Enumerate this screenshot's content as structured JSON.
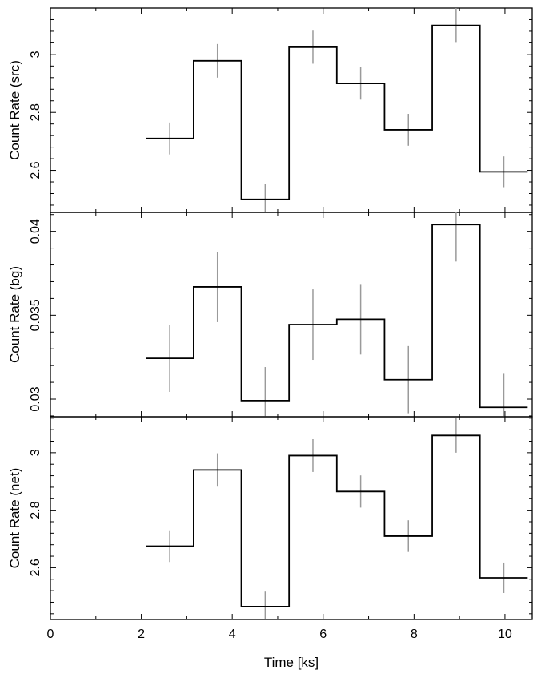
{
  "chart_data": [
    {
      "type": "line",
      "subtype": "step-histogram with error bars",
      "ylabel": "Count Rate (src)",
      "xlim": [
        0,
        10.6
      ],
      "ylim": [
        2.455,
        3.16
      ],
      "yticks": [
        2.6,
        2.8,
        3
      ],
      "ytick_labels": [
        "2.6",
        "2.8",
        "3"
      ],
      "bin_edges": [
        2.1,
        3.15,
        4.2,
        5.25,
        6.3,
        7.35,
        8.4,
        9.45,
        10.5
      ],
      "x": [
        2.625,
        3.675,
        4.725,
        5.775,
        6.825,
        7.875,
        8.925,
        9.975
      ],
      "values": [
        2.71,
        2.978,
        2.5,
        3.025,
        2.9,
        2.74,
        3.1,
        2.595
      ],
      "errors": [
        0.055,
        0.058,
        0.052,
        0.057,
        0.056,
        0.055,
        0.06,
        0.053
      ]
    },
    {
      "type": "line",
      "subtype": "step-histogram with error bars",
      "ylabel": "Count Rate (bg)",
      "xlim": [
        0,
        10.6
      ],
      "ylim": [
        0.02895,
        0.04113
      ],
      "yticks": [
        0.03,
        0.035,
        0.04
      ],
      "ytick_labels": [
        "0.03",
        "0.035",
        "0.04"
      ],
      "bin_edges": [
        2.1,
        3.15,
        4.2,
        5.25,
        6.3,
        7.35,
        8.4,
        9.45,
        10.5
      ],
      "x": [
        2.625,
        3.675,
        4.725,
        5.775,
        6.825,
        7.875,
        8.925,
        9.975
      ],
      "values": [
        0.03243,
        0.03669,
        0.02991,
        0.03444,
        0.03476,
        0.03116,
        0.0404,
        0.02951
      ],
      "errors": [
        0.002,
        0.0021,
        0.002,
        0.0021,
        0.0021,
        0.002,
        0.0022,
        0.002
      ]
    },
    {
      "type": "line",
      "subtype": "step-histogram with error bars",
      "ylabel": "Count Rate (net)",
      "xlabel": "Time [ks]",
      "xlim": [
        0,
        10.6
      ],
      "ylim": [
        2.42,
        3.125
      ],
      "xticks": [
        0,
        2,
        4,
        6,
        8,
        10
      ],
      "xtick_labels": [
        "0",
        "2",
        "4",
        "6",
        "8",
        "10"
      ],
      "yticks": [
        2.6,
        2.8,
        3
      ],
      "ytick_labels": [
        "2.6",
        "2.8",
        "3"
      ],
      "bin_edges": [
        2.1,
        3.15,
        4.2,
        5.25,
        6.3,
        7.35,
        8.4,
        9.45,
        10.5
      ],
      "x": [
        2.625,
        3.675,
        4.725,
        5.775,
        6.825,
        7.875,
        8.925,
        9.975
      ],
      "values": [
        2.675,
        2.94,
        2.465,
        2.99,
        2.865,
        2.71,
        3.06,
        2.565
      ],
      "errors": [
        0.055,
        0.058,
        0.052,
        0.057,
        0.056,
        0.055,
        0.06,
        0.053
      ]
    }
  ]
}
